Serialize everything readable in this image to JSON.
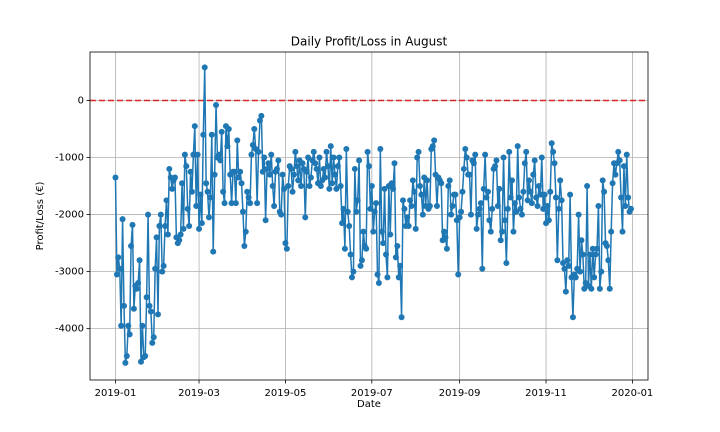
{
  "chart_data": {
    "type": "line",
    "title": "Daily Profit/Loss in August",
    "x_label": "Date",
    "y_label": "Profit/Loss (€)",
    "x": [
      "2019-01-01",
      "2019-01-02",
      "2019-01-03",
      "2019-01-04",
      "2019-01-05",
      "2019-01-06",
      "2019-01-07",
      "2019-01-08",
      "2019-01-09",
      "2019-01-10",
      "2019-01-11",
      "2019-01-12",
      "2019-01-13",
      "2019-01-14",
      "2019-01-15",
      "2019-01-16",
      "2019-01-17",
      "2019-01-18",
      "2019-01-19",
      "2019-01-20",
      "2019-01-21",
      "2019-01-22",
      "2019-01-23",
      "2019-01-24",
      "2019-01-25",
      "2019-01-26",
      "2019-01-27",
      "2019-01-28",
      "2019-01-29",
      "2019-01-30",
      "2019-01-31",
      "2019-02-01",
      "2019-02-02",
      "2019-02-03",
      "2019-02-04",
      "2019-02-05",
      "2019-02-06",
      "2019-02-07",
      "2019-02-08",
      "2019-02-09",
      "2019-02-10",
      "2019-02-11",
      "2019-02-12",
      "2019-02-13",
      "2019-02-14",
      "2019-02-15",
      "2019-02-16",
      "2019-02-17",
      "2019-02-18",
      "2019-02-19",
      "2019-02-20",
      "2019-02-21",
      "2019-02-22",
      "2019-02-23",
      "2019-02-24",
      "2019-02-25",
      "2019-02-26",
      "2019-02-27",
      "2019-02-28",
      "2019-03-01",
      "2019-03-02",
      "2019-03-03",
      "2019-03-04",
      "2019-03-05",
      "2019-03-06",
      "2019-03-07",
      "2019-03-08",
      "2019-03-09",
      "2019-03-10",
      "2019-03-11",
      "2019-03-12",
      "2019-03-13",
      "2019-03-14",
      "2019-03-15",
      "2019-03-16",
      "2019-03-17",
      "2019-03-18",
      "2019-03-19",
      "2019-03-20",
      "2019-03-21",
      "2019-03-22",
      "2019-03-23",
      "2019-03-24",
      "2019-03-25",
      "2019-03-26",
      "2019-03-27",
      "2019-03-28",
      "2019-03-29",
      "2019-03-30",
      "2019-03-31",
      "2019-04-01",
      "2019-04-02",
      "2019-04-03",
      "2019-04-04",
      "2019-04-05",
      "2019-04-06",
      "2019-04-07",
      "2019-04-08",
      "2019-04-09",
      "2019-04-10",
      "2019-04-11",
      "2019-04-12",
      "2019-04-13",
      "2019-04-14",
      "2019-04-15",
      "2019-04-16",
      "2019-04-17",
      "2019-04-18",
      "2019-04-19",
      "2019-04-20",
      "2019-04-21",
      "2019-04-22",
      "2019-04-23",
      "2019-04-24",
      "2019-04-25",
      "2019-04-26",
      "2019-04-27",
      "2019-04-28",
      "2019-04-29",
      "2019-04-30",
      "2019-05-01",
      "2019-05-02",
      "2019-05-03",
      "2019-05-04",
      "2019-05-05",
      "2019-05-06",
      "2019-05-07",
      "2019-05-08",
      "2019-05-09",
      "2019-05-10",
      "2019-05-11",
      "2019-05-12",
      "2019-05-13",
      "2019-05-14",
      "2019-05-15",
      "2019-05-16",
      "2019-05-17",
      "2019-05-18",
      "2019-05-19",
      "2019-05-20",
      "2019-05-21",
      "2019-05-22",
      "2019-05-23",
      "2019-05-24",
      "2019-05-25",
      "2019-05-26",
      "2019-05-27",
      "2019-05-28",
      "2019-05-29",
      "2019-05-30",
      "2019-05-31",
      "2019-06-01",
      "2019-06-02",
      "2019-06-03",
      "2019-06-04",
      "2019-06-05",
      "2019-06-06",
      "2019-06-07",
      "2019-06-08",
      "2019-06-09",
      "2019-06-10",
      "2019-06-11",
      "2019-06-12",
      "2019-06-13",
      "2019-06-14",
      "2019-06-15",
      "2019-06-16",
      "2019-06-17",
      "2019-06-18",
      "2019-06-19",
      "2019-06-20",
      "2019-06-21",
      "2019-06-22",
      "2019-06-23",
      "2019-06-24",
      "2019-06-25",
      "2019-06-26",
      "2019-06-27",
      "2019-06-28",
      "2019-06-29",
      "2019-06-30",
      "2019-07-01",
      "2019-07-02",
      "2019-07-03",
      "2019-07-04",
      "2019-07-05",
      "2019-07-06",
      "2019-07-07",
      "2019-07-08",
      "2019-07-09",
      "2019-07-10",
      "2019-07-11",
      "2019-07-12",
      "2019-07-13",
      "2019-07-14",
      "2019-07-15",
      "2019-07-16",
      "2019-07-17",
      "2019-07-18",
      "2019-07-19",
      "2019-07-20",
      "2019-07-21",
      "2019-07-22",
      "2019-07-23",
      "2019-07-24",
      "2019-07-25",
      "2019-07-26",
      "2019-07-27",
      "2019-07-28",
      "2019-07-29",
      "2019-07-30",
      "2019-07-31",
      "2019-08-01",
      "2019-08-02",
      "2019-08-03",
      "2019-08-04",
      "2019-08-05",
      "2019-08-06",
      "2019-08-07",
      "2019-08-08",
      "2019-08-09",
      "2019-08-10",
      "2019-08-11",
      "2019-08-12",
      "2019-08-13",
      "2019-08-14",
      "2019-08-15",
      "2019-08-16",
      "2019-08-17",
      "2019-08-18",
      "2019-08-19",
      "2019-08-20",
      "2019-08-21",
      "2019-08-22",
      "2019-08-23",
      "2019-08-24",
      "2019-08-25",
      "2019-08-26",
      "2019-08-27",
      "2019-08-28",
      "2019-08-29",
      "2019-08-30",
      "2019-08-31",
      "2019-09-01",
      "2019-09-02",
      "2019-09-03",
      "2019-09-04",
      "2019-09-05",
      "2019-09-06",
      "2019-09-07",
      "2019-09-08",
      "2019-09-09",
      "2019-09-10",
      "2019-09-11",
      "2019-09-12",
      "2019-09-13",
      "2019-09-14",
      "2019-09-15",
      "2019-09-16",
      "2019-09-17",
      "2019-09-18",
      "2019-09-19",
      "2019-09-20",
      "2019-09-21",
      "2019-09-22",
      "2019-09-23",
      "2019-09-24",
      "2019-09-25",
      "2019-09-26",
      "2019-09-27",
      "2019-09-28",
      "2019-09-29",
      "2019-09-30",
      "2019-10-01",
      "2019-10-02",
      "2019-10-03",
      "2019-10-04",
      "2019-10-05",
      "2019-10-06",
      "2019-10-07",
      "2019-10-08",
      "2019-10-09",
      "2019-10-10",
      "2019-10-11",
      "2019-10-12",
      "2019-10-13",
      "2019-10-14",
      "2019-10-15",
      "2019-10-16",
      "2019-10-17",
      "2019-10-18",
      "2019-10-19",
      "2019-10-20",
      "2019-10-21",
      "2019-10-22",
      "2019-10-23",
      "2019-10-24",
      "2019-10-25",
      "2019-10-26",
      "2019-10-27",
      "2019-10-28",
      "2019-10-29",
      "2019-10-30",
      "2019-10-31",
      "2019-11-01",
      "2019-11-02",
      "2019-11-03",
      "2019-11-04",
      "2019-11-05",
      "2019-11-06",
      "2019-11-07",
      "2019-11-08",
      "2019-11-09",
      "2019-11-10",
      "2019-11-11",
      "2019-11-12",
      "2019-11-13",
      "2019-11-14",
      "2019-11-15",
      "2019-11-16",
      "2019-11-17",
      "2019-11-18",
      "2019-11-19",
      "2019-11-20",
      "2019-11-21",
      "2019-11-22",
      "2019-11-23",
      "2019-11-24",
      "2019-11-25",
      "2019-11-26",
      "2019-11-27",
      "2019-11-28",
      "2019-11-29",
      "2019-11-30",
      "2019-12-01",
      "2019-12-02",
      "2019-12-03",
      "2019-12-04",
      "2019-12-05",
      "2019-12-06",
      "2019-12-07",
      "2019-12-08",
      "2019-12-09",
      "2019-12-10",
      "2019-12-11",
      "2019-12-12",
      "2019-12-13",
      "2019-12-14",
      "2019-12-15",
      "2019-12-16",
      "2019-12-17",
      "2019-12-18",
      "2019-12-19",
      "2019-12-20",
      "2019-12-21",
      "2019-12-22",
      "2019-12-23",
      "2019-12-24",
      "2019-12-25",
      "2019-12-26",
      "2019-12-27",
      "2019-12-28",
      "2019-12-29",
      "2019-12-30",
      "2019-12-31"
    ],
    "values": [
      -1350,
      -3050,
      -2750,
      -2950,
      -3950,
      -2080,
      -3600,
      -4600,
      -4480,
      -3950,
      -4100,
      -2550,
      -2180,
      -3650,
      -3250,
      -3300,
      -3200,
      -2800,
      -4580,
      -3950,
      -4500,
      -4480,
      -3450,
      -2000,
      -3600,
      -3700,
      -4250,
      -4150,
      -2950,
      -2400,
      -3750,
      -2200,
      -2000,
      -3000,
      -2900,
      -2200,
      -1750,
      -2350,
      -1200,
      -1350,
      -1550,
      -1400,
      -1350,
      -2400,
      -2500,
      -2450,
      -2350,
      -1450,
      -2250,
      -950,
      -1150,
      -1900,
      -2200,
      -1250,
      -1600,
      -950,
      -450,
      -1850,
      -950,
      -2250,
      -1650,
      -2150,
      -600,
      580,
      -1450,
      -1600,
      -2050,
      -1700,
      -600,
      -2650,
      -1300,
      -80,
      -1000,
      -950,
      -1050,
      -550,
      -1600,
      -1800,
      -450,
      -800,
      -500,
      -1300,
      -1800,
      -1250,
      -1250,
      -1800,
      -700,
      -1350,
      -1250,
      -1450,
      -1950,
      -2550,
      -2300,
      -1600,
      -1700,
      -1800,
      -950,
      -780,
      -500,
      -850,
      -1800,
      -900,
      -350,
      -270,
      -1250,
      -1000,
      -2100,
      -1200,
      -1100,
      -1300,
      -950,
      -1500,
      -1850,
      -1250,
      -1200,
      -1050,
      -1950,
      -2000,
      -1300,
      -1550,
      -2500,
      -2600,
      -1500,
      -1150,
      -1200,
      -1600,
      -1300,
      -900,
      -1150,
      -1400,
      -1050,
      -1500,
      -1100,
      -1200,
      -2050,
      -1250,
      -1000,
      -1500,
      -1350,
      -1050,
      -900,
      -1100,
      -1200,
      -1450,
      -1000,
      -1500,
      -1400,
      -1200,
      -1350,
      -900,
      -1150,
      -1550,
      -800,
      -1450,
      -1000,
      -1300,
      -1550,
      -1150,
      -1000,
      -1500,
      -2150,
      -1900,
      -2600,
      -850,
      -1950,
      -2200,
      -2700,
      -3100,
      -3000,
      -1200,
      -1950,
      -1750,
      -1050,
      -2900,
      -2800,
      -2300,
      -2550,
      -2600,
      -900,
      -1150,
      -1900,
      -1500,
      -2300,
      -1950,
      -1800,
      -3050,
      -3200,
      -850,
      -2300,
      -2500,
      -1550,
      -2700,
      -3100,
      -1500,
      -2350,
      -1450,
      -1550,
      -1100,
      -2750,
      -2550,
      -3100,
      -2900,
      -3800,
      -1750,
      -1900,
      -2200,
      -2050,
      -2200,
      -1750,
      -1850,
      -1400,
      -1600,
      -2250,
      -1000,
      -900,
      -1500,
      -1650,
      -2000,
      -1350,
      -1850,
      -1400,
      -1900,
      -1850,
      -850,
      -800,
      -700,
      -1300,
      -1850,
      -1350,
      -1400,
      -1450,
      -2450,
      -2300,
      -2400,
      -2600,
      -1500,
      -1400,
      -2000,
      -1850,
      -1650,
      -1650,
      -2100,
      -3050,
      -2050,
      -1950,
      -1600,
      -1200,
      -850,
      -1000,
      -1300,
      -1300,
      -2000,
      -1050,
      -1100,
      -950,
      -2250,
      -2000,
      -1900,
      -1800,
      -2950,
      -1550,
      -950,
      -1700,
      -1600,
      -2100,
      -2300,
      -1900,
      -1200,
      -1150,
      -1050,
      -1850,
      -1550,
      -2450,
      -2300,
      -1000,
      -2100,
      -2850,
      -1900,
      -900,
      -1700,
      -1400,
      -2300,
      -1800,
      -1950,
      -800,
      -1700,
      -1900,
      -2000,
      -1600,
      -1100,
      -900,
      -1750,
      -1400,
      -1600,
      -1800,
      -1300,
      -1050,
      -1700,
      -1850,
      -1500,
      -1650,
      -1000,
      -1900,
      -1650,
      -2150,
      -1850,
      -2100,
      -1600,
      -750,
      -900,
      -1100,
      -1700,
      -2800,
      -1900,
      -1400,
      -1750,
      -2850,
      -2950,
      -3350,
      -2800,
      -2900,
      -1650,
      -3100,
      -3800,
      -3050,
      -3100,
      -2950,
      -2000,
      -3000,
      -2450,
      -2700,
      -3300,
      -3200,
      -1500,
      -3250,
      -2700,
      -3300,
      -2600,
      -3100,
      -2700,
      -2600,
      -1850,
      -3300,
      -3000,
      -1400,
      -1600,
      -2500,
      -2550,
      -2800,
      -3300,
      -2300,
      -1450,
      -1100,
      -1300,
      -1100,
      -900,
      -1050,
      -1700,
      -2300,
      -1150,
      -1850,
      -950,
      -1700,
      -1950,
      -1900
    ],
    "color": "#1f77b4",
    "xlim": [
      "2018-12-14",
      "2020-01-12"
    ],
    "xticks": [
      {
        "value": "2019-01-01",
        "label": "2019-01"
      },
      {
        "value": "2019-03-01",
        "label": "2019-03"
      },
      {
        "value": "2019-05-01",
        "label": "2019-05"
      },
      {
        "value": "2019-07-01",
        "label": "2019-07"
      },
      {
        "value": "2019-09-01",
        "label": "2019-09"
      },
      {
        "value": "2019-11-01",
        "label": "2019-11"
      },
      {
        "value": "2020-01-01",
        "label": "2020-01"
      }
    ],
    "ylim": [
      -4900,
      850
    ],
    "yticks": [
      -4000,
      -3000,
      -2000,
      -1000,
      0
    ],
    "grid": true,
    "hline": {
      "y": 0,
      "color": "#d62728",
      "style": "dashed"
    }
  }
}
